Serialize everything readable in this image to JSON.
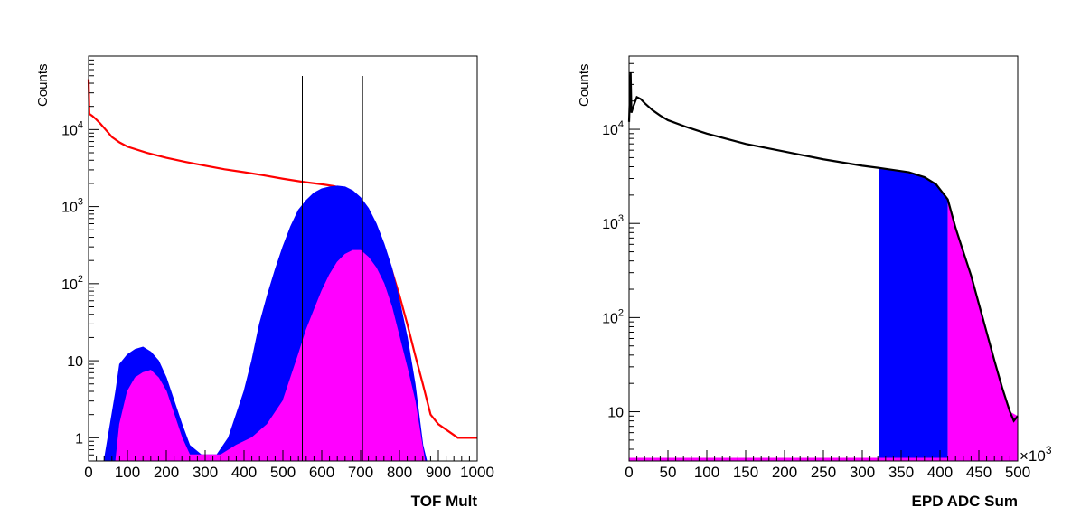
{
  "chart_data": [
    {
      "type": "histogram",
      "xlabel": "TOF Mult",
      "ylabel": "Counts",
      "xlim": [
        0,
        1000
      ],
      "ylim": [
        0.5,
        90000
      ],
      "yscale": "log",
      "x_ticks": [
        "0",
        "100",
        "200",
        "300",
        "400",
        "500",
        "600",
        "700",
        "800",
        "900",
        "1000"
      ],
      "x_tick_values": [
        0,
        100,
        200,
        300,
        400,
        500,
        600,
        700,
        800,
        900,
        1000
      ],
      "y_ticks": [
        {
          "value": 1,
          "base": "1",
          "exp": ""
        },
        {
          "value": 10,
          "base": "10",
          "exp": ""
        },
        {
          "value": 100,
          "base": "10",
          "exp": "2"
        },
        {
          "value": 1000,
          "base": "10",
          "exp": "3"
        },
        {
          "value": 10000,
          "base": "10",
          "exp": "4"
        }
      ],
      "vertical_lines": [
        550,
        705
      ],
      "series": [
        {
          "color": "#ff0000",
          "style": "line",
          "points": [
            [
              0,
              45000
            ],
            [
              2,
              16000
            ],
            [
              10,
              15000
            ],
            [
              20,
              13500
            ],
            [
              30,
              12000
            ],
            [
              40,
              10500
            ],
            [
              50,
              9200
            ],
            [
              60,
              8000
            ],
            [
              80,
              6800
            ],
            [
              100,
              6000
            ],
            [
              150,
              5000
            ],
            [
              200,
              4300
            ],
            [
              250,
              3800
            ],
            [
              300,
              3400
            ],
            [
              350,
              3050
            ],
            [
              400,
              2800
            ],
            [
              450,
              2550
            ],
            [
              500,
              2300
            ],
            [
              550,
              2100
            ],
            [
              600,
              1950
            ],
            [
              630,
              1850
            ],
            [
              650,
              1750
            ],
            [
              680,
              1500
            ],
            [
              700,
              1200
            ],
            [
              720,
              800
            ],
            [
              750,
              400
            ],
            [
              780,
              150
            ],
            [
              800,
              70
            ],
            [
              820,
              30
            ],
            [
              840,
              12
            ],
            [
              860,
              5
            ],
            [
              880,
              2
            ],
            [
              900,
              1.5
            ],
            [
              950,
              1
            ],
            [
              1000,
              1
            ]
          ]
        },
        {
          "color": "#0000ff",
          "style": "fill",
          "points": [
            [
              40,
              0.5
            ],
            [
              50,
              1
            ],
            [
              70,
              4
            ],
            [
              80,
              9
            ],
            [
              100,
              12
            ],
            [
              120,
              14
            ],
            [
              140,
              15
            ],
            [
              160,
              13
            ],
            [
              180,
              10
            ],
            [
              200,
              6
            ],
            [
              220,
              3
            ],
            [
              240,
              1.5
            ],
            [
              260,
              0.8
            ],
            [
              290,
              0.6
            ],
            [
              330,
              0.6
            ],
            [
              360,
              1
            ],
            [
              380,
              2
            ],
            [
              400,
              4
            ],
            [
              420,
              10
            ],
            [
              440,
              30
            ],
            [
              460,
              70
            ],
            [
              480,
              150
            ],
            [
              500,
              300
            ],
            [
              520,
              550
            ],
            [
              540,
              900
            ],
            [
              560,
              1200
            ],
            [
              580,
              1500
            ],
            [
              600,
              1700
            ],
            [
              620,
              1800
            ],
            [
              640,
              1850
            ],
            [
              660,
              1800
            ],
            [
              680,
              1600
            ],
            [
              700,
              1300
            ],
            [
              720,
              950
            ],
            [
              740,
              600
            ],
            [
              760,
              330
            ],
            [
              780,
              160
            ],
            [
              800,
              60
            ],
            [
              820,
              20
            ],
            [
              840,
              5
            ],
            [
              850,
              2
            ],
            [
              860,
              0.8
            ],
            [
              870,
              0.5
            ]
          ]
        },
        {
          "color": "#ff00ff",
          "style": "fill",
          "points": [
            [
              70,
              0.5
            ],
            [
              80,
              1.5
            ],
            [
              100,
              4
            ],
            [
              120,
              6
            ],
            [
              140,
              7
            ],
            [
              160,
              7.5
            ],
            [
              180,
              6
            ],
            [
              200,
              4
            ],
            [
              220,
              2
            ],
            [
              240,
              1
            ],
            [
              260,
              0.6
            ],
            [
              300,
              0.6
            ],
            [
              340,
              0.6
            ],
            [
              380,
              0.8
            ],
            [
              420,
              1
            ],
            [
              460,
              1.5
            ],
            [
              500,
              3
            ],
            [
              520,
              6
            ],
            [
              540,
              12
            ],
            [
              560,
              25
            ],
            [
              580,
              45
            ],
            [
              600,
              80
            ],
            [
              620,
              130
            ],
            [
              640,
              190
            ],
            [
              660,
              240
            ],
            [
              680,
              270
            ],
            [
              700,
              270
            ],
            [
              720,
              220
            ],
            [
              740,
              160
            ],
            [
              760,
              100
            ],
            [
              780,
              50
            ],
            [
              800,
              20
            ],
            [
              820,
              8
            ],
            [
              840,
              3
            ],
            [
              855,
              1
            ],
            [
              865,
              0.5
            ]
          ]
        }
      ]
    },
    {
      "type": "histogram",
      "xlabel": "EPD ADC Sum",
      "ylabel": "Counts",
      "x_multiplier": "×10",
      "x_multiplier_exp": "3",
      "xlim": [
        0,
        500
      ],
      "ylim": [
        3,
        60000
      ],
      "yscale": "log",
      "x_ticks": [
        "0",
        "50",
        "100",
        "150",
        "200",
        "250",
        "300",
        "350",
        "400",
        "450",
        "500"
      ],
      "x_tick_values": [
        0,
        50,
        100,
        150,
        200,
        250,
        300,
        350,
        400,
        450,
        500
      ],
      "y_ticks": [
        {
          "value": 10,
          "base": "10",
          "exp": ""
        },
        {
          "value": 100,
          "base": "10",
          "exp": "2"
        },
        {
          "value": 1000,
          "base": "10",
          "exp": "3"
        },
        {
          "value": 10000,
          "base": "10",
          "exp": "4"
        }
      ],
      "series": [
        {
          "color": "#0000ff",
          "style": "band",
          "x_range": [
            322,
            410
          ],
          "points": [
            [
              322,
              3800
            ],
            [
              340,
              3700
            ],
            [
              360,
              3500
            ],
            [
              380,
              3100
            ],
            [
              395,
              2600
            ],
            [
              410,
              1800
            ]
          ]
        },
        {
          "color": "#ff00ff",
          "style": "band",
          "x_range": [
            410,
            500
          ],
          "points": [
            [
              410,
              1800
            ],
            [
              420,
              900
            ],
            [
              430,
              500
            ],
            [
              440,
              280
            ],
            [
              450,
              140
            ],
            [
              460,
              70
            ],
            [
              470,
              35
            ],
            [
              480,
              18
            ],
            [
              490,
              10
            ],
            [
              500,
              9
            ]
          ]
        },
        {
          "color": "#000000",
          "style": "line",
          "points": [
            [
              0,
              12000
            ],
            [
              2,
              40000
            ],
            [
              3,
              15000
            ],
            [
              6,
              18000
            ],
            [
              10,
              22000
            ],
            [
              15,
              21000
            ],
            [
              20,
              19000
            ],
            [
              30,
              16000
            ],
            [
              40,
              14000
            ],
            [
              50,
              12500
            ],
            [
              75,
              10500
            ],
            [
              100,
              9000
            ],
            [
              150,
              7000
            ],
            [
              200,
              5800
            ],
            [
              250,
              4800
            ],
            [
              300,
              4100
            ],
            [
              320,
              3900
            ],
            [
              340,
              3700
            ],
            [
              360,
              3500
            ],
            [
              380,
              3100
            ],
            [
              395,
              2600
            ],
            [
              410,
              1800
            ],
            [
              420,
              900
            ],
            [
              430,
              500
            ],
            [
              440,
              280
            ],
            [
              450,
              140
            ],
            [
              460,
              70
            ],
            [
              470,
              35
            ],
            [
              480,
              18
            ],
            [
              490,
              10
            ],
            [
              495,
              8
            ],
            [
              500,
              9
            ]
          ]
        },
        {
          "color": "#ff00ff",
          "style": "baseline",
          "x_range": [
            0,
            500
          ]
        }
      ]
    }
  ]
}
